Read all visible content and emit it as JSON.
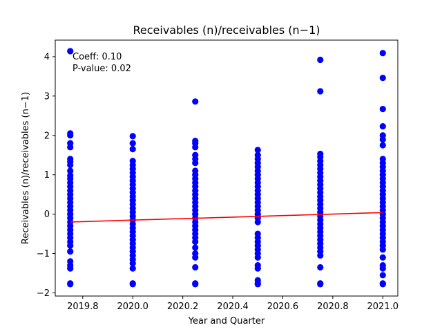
{
  "chart_data": {
    "type": "scatter",
    "title": "Receivables (n)/receivables (n−1)",
    "xlabel": "Year and Quarter",
    "ylabel": "Receivables (n)/receivables (n−1)",
    "xlim": [
      2019.69,
      2021.06
    ],
    "ylim": [
      -2.08,
      4.42
    ],
    "xticks": [
      2019.8,
      2020.0,
      2020.2,
      2020.4,
      2020.6,
      2020.8,
      2021.0
    ],
    "xtick_labels": [
      "2019.8",
      "2020.0",
      "2020.2",
      "2020.4",
      "2020.6",
      "2020.8",
      "2021.0"
    ],
    "yticks": [
      -2,
      -1,
      0,
      1,
      2,
      3,
      4
    ],
    "ytick_labels": [
      "−2",
      "−1",
      "0",
      "1",
      "2",
      "3",
      "4"
    ],
    "grid": false,
    "point_color": "#0000ff",
    "line_color": "#ff0000",
    "annotations": [
      "Coeff: 0.10",
      "P-value: 0.02"
    ],
    "series": [
      {
        "points": [
          [
            2019.75,
            4.14
          ],
          [
            2019.75,
            2.05
          ],
          [
            2019.75,
            2.0
          ],
          [
            2019.75,
            1.8
          ],
          [
            2019.75,
            1.7
          ],
          [
            2019.75,
            1.4
          ],
          [
            2019.75,
            1.33
          ],
          [
            2019.75,
            1.25
          ],
          [
            2019.75,
            1.1
          ],
          [
            2019.75,
            0.98
          ],
          [
            2019.75,
            0.9
          ],
          [
            2019.75,
            0.8
          ],
          [
            2019.75,
            0.7
          ],
          [
            2019.75,
            0.6
          ],
          [
            2019.75,
            0.5
          ],
          [
            2019.75,
            0.4
          ],
          [
            2019.75,
            0.3
          ],
          [
            2019.75,
            0.2
          ],
          [
            2019.75,
            0.1
          ],
          [
            2019.75,
            0.0
          ],
          [
            2019.75,
            -0.1
          ],
          [
            2019.75,
            -0.2
          ],
          [
            2019.75,
            -0.3
          ],
          [
            2019.75,
            -0.4
          ],
          [
            2019.75,
            -0.5
          ],
          [
            2019.75,
            -0.6
          ],
          [
            2019.75,
            -0.7
          ],
          [
            2019.75,
            -0.8
          ],
          [
            2019.75,
            -0.95
          ],
          [
            2019.75,
            -1.2
          ],
          [
            2019.75,
            -1.3
          ],
          [
            2019.75,
            -1.38
          ],
          [
            2019.75,
            -1.76
          ],
          [
            2019.75,
            -1.78
          ],
          [
            2020.0,
            1.98
          ],
          [
            2020.0,
            1.8
          ],
          [
            2020.0,
            1.65
          ],
          [
            2020.0,
            1.35
          ],
          [
            2020.0,
            1.25
          ],
          [
            2020.0,
            1.15
          ],
          [
            2020.0,
            1.05
          ],
          [
            2020.0,
            0.95
          ],
          [
            2020.0,
            0.85
          ],
          [
            2020.0,
            0.75
          ],
          [
            2020.0,
            0.65
          ],
          [
            2020.0,
            0.55
          ],
          [
            2020.0,
            0.45
          ],
          [
            2020.0,
            0.35
          ],
          [
            2020.0,
            0.25
          ],
          [
            2020.0,
            0.15
          ],
          [
            2020.0,
            0.05
          ],
          [
            2020.0,
            -0.05
          ],
          [
            2020.0,
            -0.15
          ],
          [
            2020.0,
            -0.25
          ],
          [
            2020.0,
            -0.35
          ],
          [
            2020.0,
            -0.45
          ],
          [
            2020.0,
            -0.55
          ],
          [
            2020.0,
            -0.65
          ],
          [
            2020.0,
            -0.75
          ],
          [
            2020.0,
            -0.85
          ],
          [
            2020.0,
            -0.95
          ],
          [
            2020.0,
            -1.05
          ],
          [
            2020.0,
            -1.15
          ],
          [
            2020.0,
            -1.25
          ],
          [
            2020.0,
            -1.38
          ],
          [
            2020.0,
            -1.76
          ],
          [
            2020.0,
            -1.78
          ],
          [
            2020.25,
            2.86
          ],
          [
            2020.25,
            1.86
          ],
          [
            2020.25,
            1.8
          ],
          [
            2020.25,
            1.7
          ],
          [
            2020.25,
            1.5
          ],
          [
            2020.25,
            1.4
          ],
          [
            2020.25,
            1.3
          ],
          [
            2020.25,
            1.1
          ],
          [
            2020.25,
            1.0
          ],
          [
            2020.25,
            0.9
          ],
          [
            2020.25,
            0.8
          ],
          [
            2020.25,
            0.7
          ],
          [
            2020.25,
            0.6
          ],
          [
            2020.25,
            0.5
          ],
          [
            2020.25,
            0.4
          ],
          [
            2020.25,
            0.3
          ],
          [
            2020.25,
            0.2
          ],
          [
            2020.25,
            0.1
          ],
          [
            2020.25,
            0.0
          ],
          [
            2020.25,
            -0.1
          ],
          [
            2020.25,
            -0.2
          ],
          [
            2020.25,
            -0.3
          ],
          [
            2020.25,
            -0.4
          ],
          [
            2020.25,
            -0.5
          ],
          [
            2020.25,
            -0.6
          ],
          [
            2020.25,
            -0.7
          ],
          [
            2020.25,
            -0.85
          ],
          [
            2020.25,
            -1.0
          ],
          [
            2020.25,
            -1.1
          ],
          [
            2020.25,
            -1.35
          ],
          [
            2020.25,
            -1.76
          ],
          [
            2020.25,
            -1.78
          ],
          [
            2020.5,
            1.63
          ],
          [
            2020.5,
            1.5
          ],
          [
            2020.5,
            1.4
          ],
          [
            2020.5,
            1.3
          ],
          [
            2020.5,
            1.2
          ],
          [
            2020.5,
            1.1
          ],
          [
            2020.5,
            1.0
          ],
          [
            2020.5,
            0.9
          ],
          [
            2020.5,
            0.8
          ],
          [
            2020.5,
            0.7
          ],
          [
            2020.5,
            0.6
          ],
          [
            2020.5,
            0.5
          ],
          [
            2020.5,
            0.4
          ],
          [
            2020.5,
            0.3
          ],
          [
            2020.5,
            0.2
          ],
          [
            2020.5,
            0.1
          ],
          [
            2020.5,
            0.0
          ],
          [
            2020.5,
            -0.1
          ],
          [
            2020.5,
            -0.2
          ],
          [
            2020.5,
            -0.5
          ],
          [
            2020.5,
            -0.6
          ],
          [
            2020.5,
            -0.7
          ],
          [
            2020.5,
            -0.8
          ],
          [
            2020.5,
            -0.9
          ],
          [
            2020.5,
            -1.0
          ],
          [
            2020.5,
            -1.1
          ],
          [
            2020.5,
            -1.3
          ],
          [
            2020.5,
            -1.38
          ],
          [
            2020.5,
            -1.68
          ],
          [
            2020.5,
            -1.76
          ],
          [
            2020.5,
            -1.78
          ],
          [
            2020.75,
            3.92
          ],
          [
            2020.75,
            3.12
          ],
          [
            2020.75,
            1.53
          ],
          [
            2020.75,
            1.45
          ],
          [
            2020.75,
            1.35
          ],
          [
            2020.75,
            1.25
          ],
          [
            2020.75,
            1.15
          ],
          [
            2020.75,
            1.05
          ],
          [
            2020.75,
            0.95
          ],
          [
            2020.75,
            0.85
          ],
          [
            2020.75,
            0.75
          ],
          [
            2020.75,
            0.65
          ],
          [
            2020.75,
            0.55
          ],
          [
            2020.75,
            0.45
          ],
          [
            2020.75,
            0.35
          ],
          [
            2020.75,
            0.25
          ],
          [
            2020.75,
            0.15
          ],
          [
            2020.75,
            0.05
          ],
          [
            2020.75,
            -0.05
          ],
          [
            2020.75,
            -0.15
          ],
          [
            2020.75,
            -0.25
          ],
          [
            2020.75,
            -0.35
          ],
          [
            2020.75,
            -0.45
          ],
          [
            2020.75,
            -0.55
          ],
          [
            2020.75,
            -0.65
          ],
          [
            2020.75,
            -0.75
          ],
          [
            2020.75,
            -0.85
          ],
          [
            2020.75,
            -0.95
          ],
          [
            2020.75,
            -1.05
          ],
          [
            2020.75,
            -1.35
          ],
          [
            2020.75,
            -1.76
          ],
          [
            2020.75,
            -1.78
          ],
          [
            2021.0,
            4.09
          ],
          [
            2021.0,
            3.46
          ],
          [
            2021.0,
            2.67
          ],
          [
            2021.0,
            2.23
          ],
          [
            2021.0,
            2.0
          ],
          [
            2021.0,
            1.9
          ],
          [
            2021.0,
            1.75
          ],
          [
            2021.0,
            1.4
          ],
          [
            2021.0,
            1.3
          ],
          [
            2021.0,
            1.2
          ],
          [
            2021.0,
            1.1
          ],
          [
            2021.0,
            1.0
          ],
          [
            2021.0,
            0.9
          ],
          [
            2021.0,
            0.8
          ],
          [
            2021.0,
            0.7
          ],
          [
            2021.0,
            0.6
          ],
          [
            2021.0,
            0.5
          ],
          [
            2021.0,
            0.4
          ],
          [
            2021.0,
            0.3
          ],
          [
            2021.0,
            0.2
          ],
          [
            2021.0,
            0.1
          ],
          [
            2021.0,
            0.0
          ],
          [
            2021.0,
            -0.1
          ],
          [
            2021.0,
            -0.2
          ],
          [
            2021.0,
            -0.3
          ],
          [
            2021.0,
            -0.4
          ],
          [
            2021.0,
            -0.5
          ],
          [
            2021.0,
            -0.6
          ],
          [
            2021.0,
            -0.7
          ],
          [
            2021.0,
            -0.8
          ],
          [
            2021.0,
            -0.9
          ],
          [
            2021.0,
            -1.1
          ],
          [
            2021.0,
            -1.3
          ],
          [
            2021.0,
            -1.38
          ],
          [
            2021.0,
            -1.55
          ],
          [
            2021.0,
            -1.76
          ],
          [
            2021.0,
            -1.78
          ]
        ]
      }
    ],
    "regression_line": {
      "x": [
        2019.75,
        2021.0
      ],
      "y": [
        -0.2,
        0.04
      ]
    }
  }
}
